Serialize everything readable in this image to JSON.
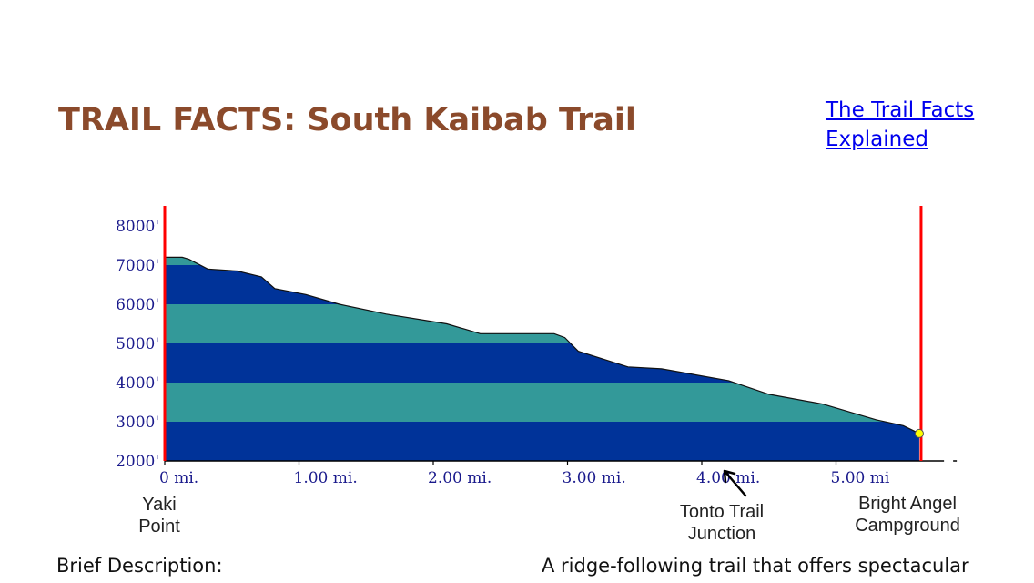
{
  "header": {
    "title": "TRAIL FACTS: South Kaibab Trail",
    "explain_link": "The Trail Facts Explained"
  },
  "description": {
    "label": "Brief Description:",
    "text": "A ridge-following trail that offers spectacular"
  },
  "colors": {
    "title": "#8B4A2B",
    "link": "#0000EE",
    "band_dark": "#003399",
    "band_light": "#339999",
    "marker_line": "#FF0000",
    "endpoint": "#FFFF00"
  },
  "chart_data": {
    "type": "area",
    "title": "",
    "xlabel": "",
    "ylabel": "",
    "xlim": [
      0,
      5.75
    ],
    "ylim": [
      2000,
      8000
    ],
    "y_ticks": [
      {
        "value": 8000,
        "label": "8000'"
      },
      {
        "value": 7000,
        "label": "7000'"
      },
      {
        "value": 6000,
        "label": "6000'"
      },
      {
        "value": 5000,
        "label": "5000'"
      },
      {
        "value": 4000,
        "label": "4000'"
      },
      {
        "value": 3000,
        "label": "3000'"
      },
      {
        "value": 2000,
        "label": "2000'"
      }
    ],
    "x_ticks": [
      {
        "value": 0,
        "label": "0 mi."
      },
      {
        "value": 1,
        "label": "1.00 mi."
      },
      {
        "value": 2,
        "label": "2.00 mi."
      },
      {
        "value": 3,
        "label": "3.00 mi."
      },
      {
        "value": 4,
        "label": "4.00 mi."
      },
      {
        "value": 5,
        "label": "5.00 mi"
      }
    ],
    "series": [
      {
        "x": [
          0,
          0.13,
          0.18,
          0.32,
          0.54,
          0.72,
          0.82,
          1.05,
          1.3,
          1.65,
          2.1,
          2.35,
          2.9,
          2.98,
          3.08,
          3.45,
          3.7,
          4.2,
          4.5,
          4.9,
          5.3,
          5.5,
          5.62
        ],
        "y": [
          7200,
          7200,
          7150,
          6900,
          6850,
          6700,
          6400,
          6250,
          6000,
          5750,
          5500,
          5250,
          5250,
          5150,
          4800,
          4400,
          4350,
          4050,
          3700,
          3450,
          3050,
          2900,
          2700
        ]
      }
    ],
    "elevation_bands": [
      2000,
      3000,
      4000,
      5000,
      6000,
      7000,
      8000
    ],
    "annotations": [
      {
        "name": "yaki-point",
        "label_lines": [
          "Yaki",
          "Point"
        ],
        "x": 0
      },
      {
        "name": "tonto-trail-junction",
        "label_lines": [
          "Tonto Trail",
          "Junction"
        ],
        "x": 4.15
      },
      {
        "name": "bright-angel-campground",
        "label_lines": [
          "Bright Angel",
          "Campground"
        ],
        "x": 5.62
      }
    ],
    "endpoint": {
      "x": 5.62,
      "y": 2700
    },
    "grid": false,
    "legend": "none"
  }
}
